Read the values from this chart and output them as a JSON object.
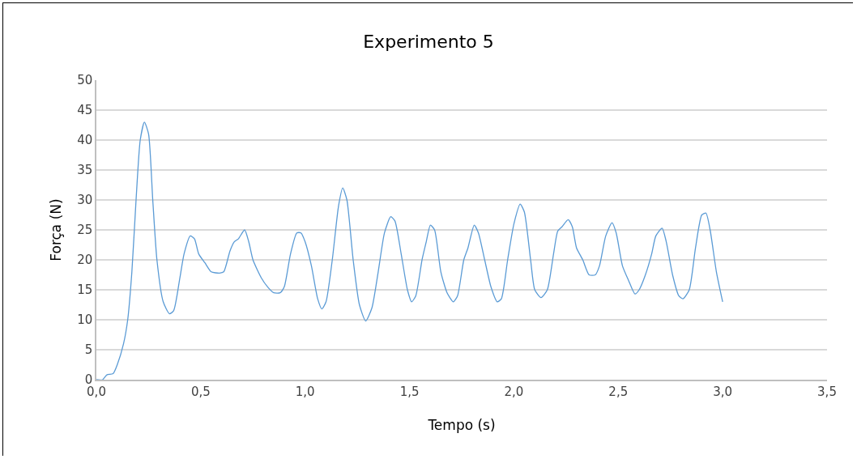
{
  "chart_data": {
    "type": "line",
    "title": "Experimento 5",
    "xlabel": "Tempo (s)",
    "ylabel": "Força (N)",
    "xlim": [
      0,
      3.5
    ],
    "xticks": [
      {
        "value": 0,
        "label": "0,0"
      },
      {
        "value": 0.5,
        "label": "0,5"
      },
      {
        "value": 1,
        "label": "1,0"
      },
      {
        "value": 1.5,
        "label": "1,5"
      },
      {
        "value": 2,
        "label": "2,0"
      },
      {
        "value": 2.5,
        "label": "2,5"
      },
      {
        "value": 3,
        "label": "3,0"
      },
      {
        "value": 3.5,
        "label": "3,5"
      }
    ],
    "ylim": [
      0,
      50
    ],
    "yticks": [
      0,
      5,
      10,
      15,
      20,
      25,
      30,
      35,
      40,
      45,
      50
    ],
    "grid": "y",
    "legend": false,
    "marker": "none",
    "line_style": "solid",
    "x": [
      0,
      0.03,
      0.05,
      0.08,
      0.1,
      0.13,
      0.15,
      0.17,
      0.19,
      0.21,
      0.23,
      0.25,
      0.27,
      0.29,
      0.32,
      0.35,
      0.37,
      0.4,
      0.42,
      0.45,
      0.47,
      0.49,
      0.52,
      0.55,
      0.59,
      0.61,
      0.64,
      0.66,
      0.68,
      0.71,
      0.73,
      0.75,
      0.79,
      0.82,
      0.85,
      0.88,
      0.9,
      0.93,
      0.96,
      0.98,
      1.0,
      1.03,
      1.06,
      1.08,
      1.1,
      1.13,
      1.16,
      1.18,
      1.2,
      1.23,
      1.26,
      1.29,
      1.32,
      1.35,
      1.38,
      1.41,
      1.43,
      1.46,
      1.49,
      1.51,
      1.53,
      1.56,
      1.58,
      1.6,
      1.62,
      1.65,
      1.68,
      1.71,
      1.73,
      1.76,
      1.78,
      1.81,
      1.83,
      1.86,
      1.89,
      1.92,
      1.94,
      1.97,
      2.0,
      2.03,
      2.05,
      2.08,
      2.1,
      2.13,
      2.16,
      2.19,
      2.21,
      2.23,
      2.26,
      2.28,
      2.3,
      2.33,
      2.36,
      2.39,
      2.41,
      2.44,
      2.47,
      2.49,
      2.52,
      2.55,
      2.58,
      2.6,
      2.63,
      2.66,
      2.68,
      2.71,
      2.73,
      2.76,
      2.79,
      2.81,
      2.84,
      2.87,
      2.9,
      2.92,
      2.94,
      2.97,
      3.0
    ],
    "series": [
      {
        "color": "#5b9bd5",
        "values": [
          0,
          0,
          0.8,
          1,
          2.5,
          6,
          10,
          18,
          30,
          40,
          43,
          41,
          30,
          20,
          13,
          11,
          11.5,
          17,
          21,
          24,
          23.5,
          21,
          19.5,
          18,
          17.8,
          18,
          21.5,
          23,
          23.5,
          25,
          23,
          20,
          17,
          15.5,
          14.5,
          14.5,
          15.5,
          21,
          24.5,
          24.5,
          23,
          19,
          13.5,
          11.8,
          13,
          20,
          29,
          32,
          30,
          20,
          12.5,
          9.8,
          12,
          18,
          24.5,
          27.2,
          26.5,
          21,
          15,
          13,
          14,
          20,
          23,
          25.8,
          25,
          18,
          14.5,
          13,
          14,
          20,
          22,
          25.8,
          24.5,
          20,
          15.5,
          13,
          13.5,
          20,
          26,
          29.3,
          28,
          20,
          15,
          13.7,
          15,
          21,
          24.8,
          25.5,
          26.7,
          25.5,
          22,
          20,
          17.5,
          17.5,
          19,
          24,
          26.2,
          24.5,
          19,
          16.5,
          14.3,
          15,
          17.5,
          21,
          24,
          25.3,
          23,
          17.5,
          14,
          13.5,
          15,
          22,
          27.5,
          27.8,
          25,
          18,
          13
        ]
      }
    ]
  }
}
